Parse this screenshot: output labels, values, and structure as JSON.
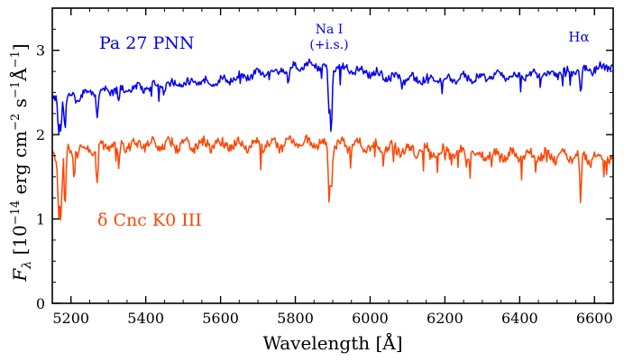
{
  "chart_data": {
    "type": "line",
    "xlabel": "Wavelength [Å]",
    "ylabel": "F_λ [10^-14 erg cm^-2 s^-1 Å^-1]",
    "xlim": [
      5150,
      6650
    ],
    "ylim": [
      0,
      3.5
    ],
    "x_ticks": [
      5200,
      5400,
      5600,
      5800,
      6000,
      6200,
      6400,
      6600
    ],
    "y_ticks": [
      0,
      1,
      2,
      3
    ],
    "grid": false,
    "series": [
      {
        "name": "Pa 27 PNN",
        "color": "#0000ee",
        "continuum": [
          [
            5150,
            2.42
          ],
          [
            5300,
            2.52
          ],
          [
            5400,
            2.56
          ],
          [
            5500,
            2.6
          ],
          [
            5600,
            2.64
          ],
          [
            5700,
            2.72
          ],
          [
            5800,
            2.8
          ],
          [
            5850,
            2.83
          ],
          [
            5900,
            2.8
          ],
          [
            6000,
            2.73
          ],
          [
            6100,
            2.66
          ],
          [
            6200,
            2.66
          ],
          [
            6300,
            2.68
          ],
          [
            6400,
            2.7
          ],
          [
            6500,
            2.72
          ],
          [
            6600,
            2.78
          ],
          [
            6650,
            2.82
          ]
        ],
        "absorption_lines": [
          {
            "x": 5167,
            "depth": 0.42
          },
          {
            "x": 5173,
            "depth": 0.35
          },
          {
            "x": 5184,
            "depth": 0.4
          },
          {
            "x": 5270,
            "depth": 0.25
          },
          {
            "x": 5328,
            "depth": 0.2
          },
          {
            "x": 5781,
            "depth": 0.2
          },
          {
            "x": 5890,
            "depth": 0.55
          },
          {
            "x": 5896,
            "depth": 0.8
          },
          {
            "x": 6563,
            "depth": 0.3
          }
        ]
      },
      {
        "name": "δ Cnc K0 III",
        "color": "#ff4500",
        "continuum": [
          [
            5150,
            1.75
          ],
          [
            5200,
            1.82
          ],
          [
            5300,
            1.86
          ],
          [
            5400,
            1.88
          ],
          [
            5500,
            1.88
          ],
          [
            5600,
            1.88
          ],
          [
            5700,
            1.88
          ],
          [
            5800,
            1.89
          ],
          [
            5900,
            1.88
          ],
          [
            6000,
            1.86
          ],
          [
            6100,
            1.82
          ],
          [
            6200,
            1.79
          ],
          [
            6300,
            1.77
          ],
          [
            6400,
            1.76
          ],
          [
            6500,
            1.74
          ],
          [
            6600,
            1.73
          ],
          [
            6650,
            1.72
          ]
        ],
        "absorption_lines": [
          {
            "x": 5167,
            "depth": 0.7
          },
          {
            "x": 5173,
            "depth": 0.72
          },
          {
            "x": 5184,
            "depth": 0.7
          },
          {
            "x": 5208,
            "depth": 0.3
          },
          {
            "x": 5270,
            "depth": 0.45
          },
          {
            "x": 5328,
            "depth": 0.3
          },
          {
            "x": 5890,
            "depth": 0.6
          },
          {
            "x": 5896,
            "depth": 0.5
          },
          {
            "x": 6563,
            "depth": 0.55
          }
        ]
      }
    ],
    "annotations": {
      "na": "Na I",
      "na_sub": "(+i.s.)",
      "halpha": "Hα",
      "pa27": "Pa 27 PNN",
      "dcnc": "δ Cnc K0 III"
    }
  }
}
